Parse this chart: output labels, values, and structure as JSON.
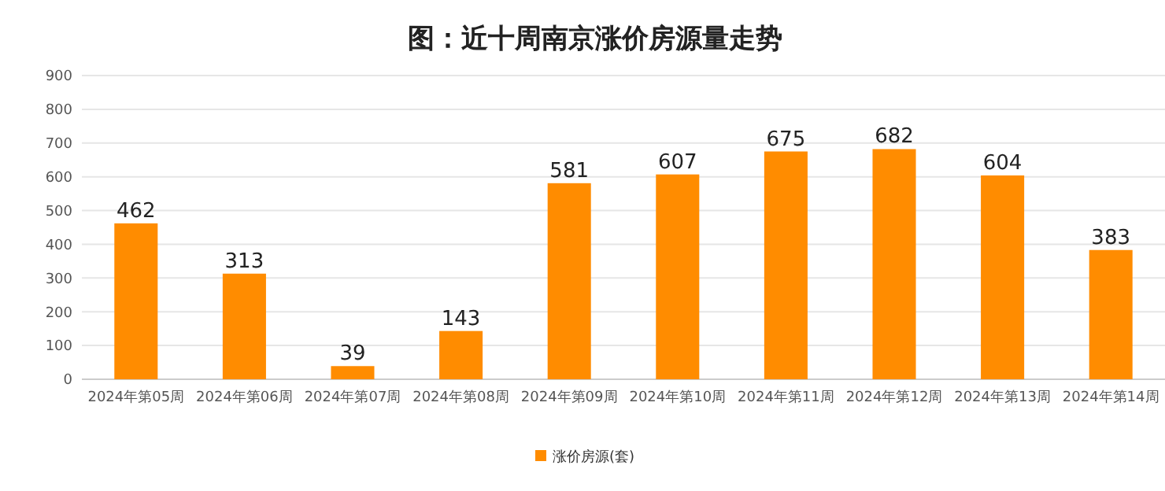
{
  "chart_data": {
    "type": "bar",
    "title": "图：近十周南京涨价房源量走势",
    "categories": [
      "2024年第05周",
      "2024年第06周",
      "2024年第07周",
      "2024年第08周",
      "2024年第09周",
      "2024年第10周",
      "2024年第11周",
      "2024年第12周",
      "2024年第13周",
      "2024年第14周"
    ],
    "series": [
      {
        "name": "涨价房源(套)",
        "color": "#ff8c00",
        "values": [
          462,
          313,
          39,
          143,
          581,
          607,
          675,
          682,
          604,
          383
        ]
      }
    ],
    "ylim": [
      0,
      900
    ],
    "yticks": [
      0,
      100,
      200,
      300,
      400,
      500,
      600,
      700,
      800,
      900
    ],
    "grid": "y",
    "legend": "bottom",
    "data_labels": true
  }
}
